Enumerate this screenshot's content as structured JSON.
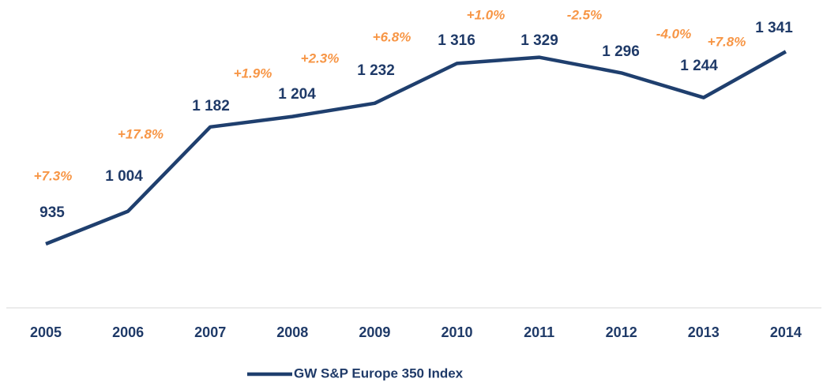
{
  "chart_data": {
    "type": "line",
    "categories": [
      "2005",
      "2006",
      "2007",
      "2008",
      "2009",
      "2010",
      "2011",
      "2012",
      "2013",
      "2014"
    ],
    "series": [
      {
        "name": "GW S&P Europe 350 Index",
        "color": "#1f3f6e",
        "values": [
          935,
          1004,
          1182,
          1204,
          1232,
          1316,
          1329,
          1296,
          1244,
          1341
        ],
        "value_labels": [
          "935",
          "1 004",
          "1 182",
          "1 204",
          "1 232",
          "1 316",
          "1 329",
          "1 296",
          "1 244",
          "1 341"
        ]
      }
    ],
    "annotations": [
      "+7.3%",
      "+17.8%",
      "+1.9%",
      "+2.3%",
      "+6.8%",
      "+1.0%",
      "-2.5%",
      "-4.0%",
      "+7.8%"
    ],
    "annotation_color": "#f79646",
    "ylim": [
      800,
      1450
    ],
    "legend": "bottom"
  }
}
